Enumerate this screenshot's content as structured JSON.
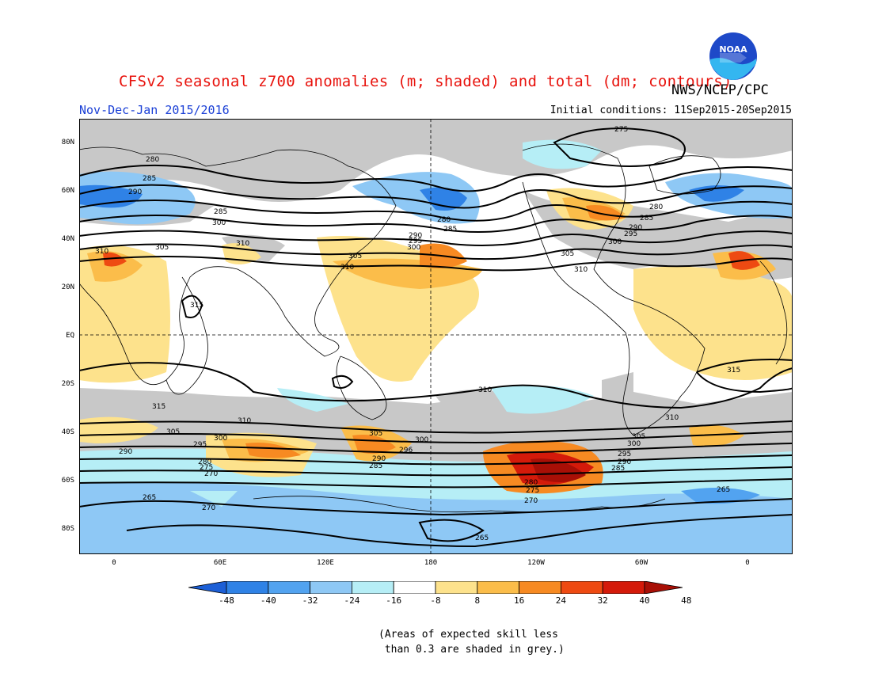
{
  "header": {
    "title": "CFSv2 seasonal z700 anomalies (m; shaded) and total (dm; contours)",
    "agency": "NWS/NCEP/CPC",
    "season": "Nov-Dec-Jan 2015/2016",
    "initial_conditions": "Initial conditions: 11Sep2015-20Sep2015",
    "logo_text": "NOAA"
  },
  "map": {
    "lat_labels": [
      "80N",
      "60N",
      "40N",
      "20N",
      "EQ",
      "20S",
      "40S",
      "60S",
      "80S"
    ],
    "lon_labels": [
      "0",
      "60E",
      "120E",
      "180",
      "120W",
      "60W",
      "0"
    ],
    "contour_labels": {
      "north": [
        "275",
        "280",
        "285",
        "290",
        "295",
        "300",
        "305",
        "310",
        "315"
      ],
      "south": [
        "310",
        "315",
        "305",
        "300",
        "296",
        "295",
        "290",
        "285",
        "280",
        "275",
        "270",
        "265"
      ]
    }
  },
  "colorbar": {
    "ticks": [
      "-48",
      "-40",
      "-32",
      "-24",
      "-16",
      "-8",
      "8",
      "16",
      "24",
      "32",
      "40",
      "48"
    ],
    "colors": [
      "#1c5fd6",
      "#2f82e6",
      "#52a3f0",
      "#8ec8f5",
      "#b6eef6",
      "#ffffff",
      "#fde28c",
      "#fbbd4a",
      "#f78a22",
      "#ee4a12",
      "#d41a0a",
      "#a80f06"
    ]
  },
  "note": {
    "line1": "(Areas of expected skill less",
    "line2": " than 0.3 are shaded in grey.)"
  }
}
